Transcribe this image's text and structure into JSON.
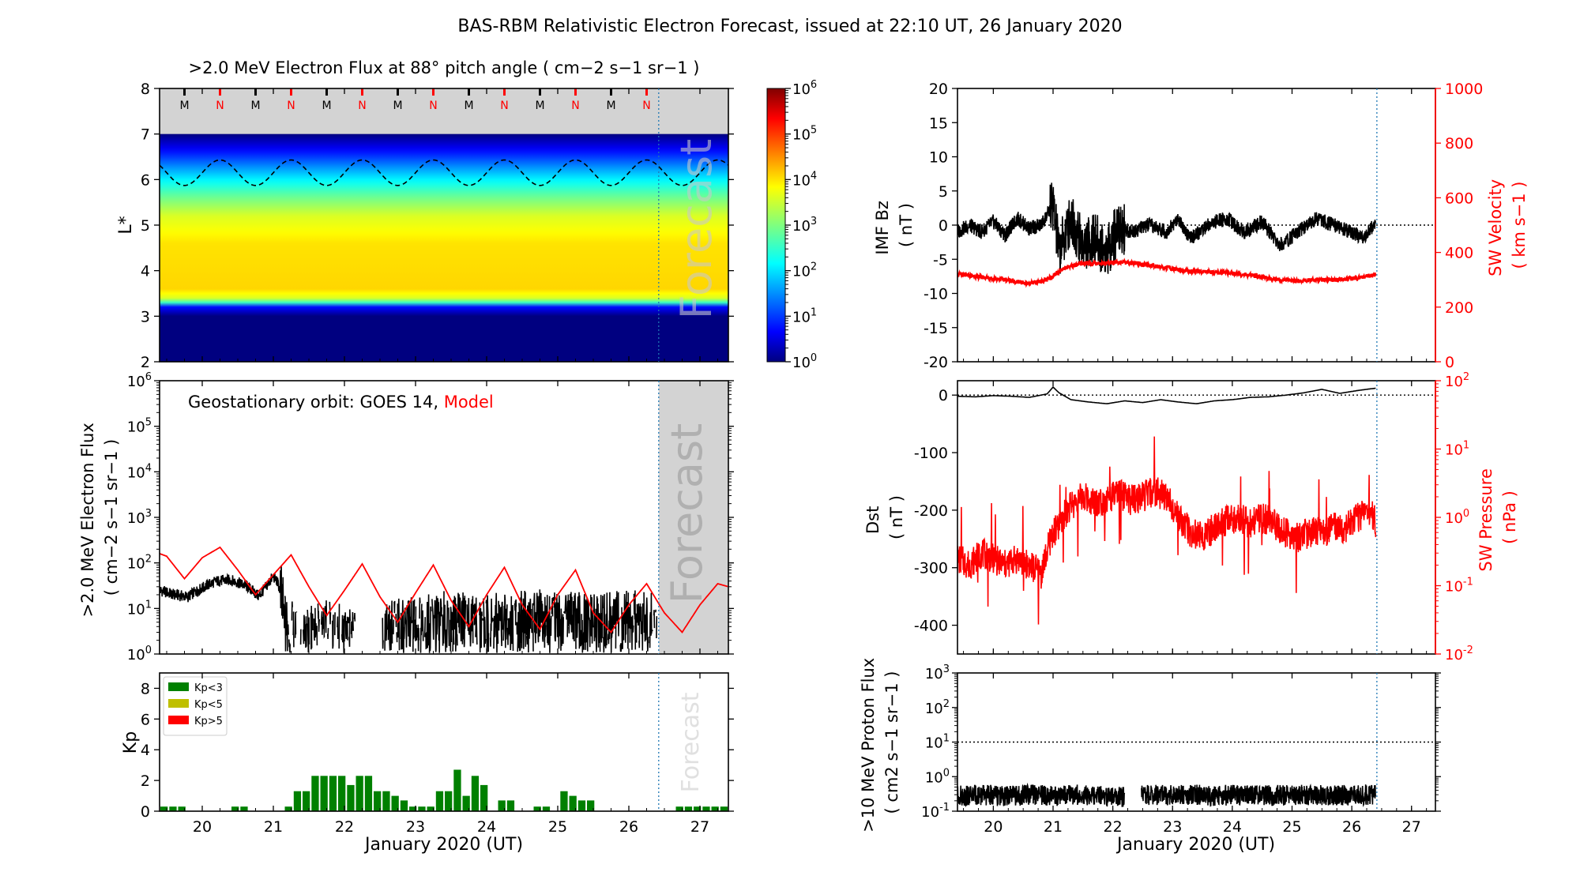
{
  "figure": {
    "title": "BAS-RBM Relativistic Electron Forecast, issued at 22:10 UT, 26 January 2020",
    "forecast_label": "Forecast",
    "month_label": "January 2020 (UT)",
    "x_range": [
      19.4,
      27.4
    ],
    "forecast_start": 26.42,
    "x_ticks": [
      20,
      21,
      22,
      23,
      24,
      25,
      26,
      27
    ],
    "colors": {
      "obs": "#000000",
      "model": "#ff0000",
      "forecast_line": "#1f77b4",
      "forecast_fill": "#d3d3d3"
    }
  },
  "chart_data": [
    {
      "id": "flux_map",
      "type": "heatmap",
      "title": ">2.0 MeV Electron Flux at 88° pitch angle ( cm−2 s−1 sr−1 )",
      "ylabel": "L*",
      "ylim": [
        2,
        8
      ],
      "yticks": [
        2,
        3,
        4,
        5,
        6,
        7,
        8
      ],
      "colorbar": {
        "scale": "log",
        "range": [
          1,
          1000000
        ],
        "ticks": [
          "10^0",
          "10^1",
          "10^2",
          "10^3",
          "10^4",
          "10^5",
          "10^6"
        ]
      },
      "flux_profile": [
        [
          2.0,
          1
        ],
        [
          3.0,
          1
        ],
        [
          3.2,
          5
        ],
        [
          3.35,
          3000
        ],
        [
          3.6,
          12000
        ],
        [
          4.6,
          10000
        ],
        [
          5.2,
          4000
        ],
        [
          5.6,
          800
        ],
        [
          6.1,
          80
        ],
        [
          6.6,
          6
        ],
        [
          7.0,
          1
        ]
      ],
      "magnetopause_band": [
        7.0,
        8.0
      ],
      "geo_orbit_line": {
        "mean_L": 6.15,
        "amplitude": 0.28,
        "period_days": 1.0
      },
      "local_time_markers": [
        "M",
        "N",
        "M",
        "N",
        "M",
        "N",
        "M",
        "N",
        "M",
        "N",
        "M",
        "N",
        "M",
        "N"
      ],
      "marker_times": [
        19.75,
        20.25,
        20.75,
        21.25,
        21.75,
        22.25,
        22.75,
        23.25,
        23.75,
        24.25,
        24.75,
        25.25,
        25.75,
        26.25
      ]
    },
    {
      "id": "geo_flux",
      "type": "line",
      "annotation_prefix": "Geostationary orbit:   GOES 14,",
      "annotation_model": "Model",
      "ylabel": [
        ">2.0 MeV Electron Flux",
        "( cm−2 s−1 sr−1 )"
      ],
      "yscale": "log",
      "ylim": [
        1,
        1000000
      ],
      "yticks": [
        "10^0",
        "10^1",
        "10^2",
        "10^3",
        "10^4",
        "10^5",
        "10^6"
      ],
      "series": [
        {
          "name": "GOES 14",
          "x": [
            19.4,
            19.6,
            19.8,
            20.0,
            20.2,
            20.4,
            20.6,
            20.8,
            20.9,
            21.0,
            21.05,
            21.15,
            21.3,
            21.5,
            21.7,
            22.0,
            22.2,
            22.5,
            23.0,
            23.5,
            24.0,
            24.5,
            25.0,
            25.5,
            26.0,
            26.4
          ],
          "y": [
            25,
            20,
            18,
            28,
            40,
            42,
            32,
            18,
            30,
            50,
            40,
            5,
            2,
            2,
            3,
            2.5,
            2,
            2.5,
            4,
            5,
            4,
            5,
            5,
            4,
            5,
            4
          ]
        },
        {
          "name": "Model",
          "x": [
            19.4,
            19.5,
            19.75,
            20.0,
            20.25,
            20.5,
            20.75,
            21.0,
            21.25,
            21.5,
            21.75,
            22.0,
            22.25,
            22.5,
            22.75,
            23.0,
            23.25,
            23.5,
            23.75,
            24.0,
            24.25,
            24.5,
            24.75,
            25.0,
            25.25,
            25.5,
            25.75,
            26.0,
            26.25,
            26.5,
            26.75,
            27.0,
            27.25,
            27.4
          ],
          "y": [
            160,
            140,
            45,
            130,
            220,
            70,
            20,
            55,
            150,
            30,
            7,
            25,
            95,
            18,
            5,
            22,
            90,
            15,
            4,
            20,
            80,
            12,
            3.5,
            20,
            70,
            8,
            3,
            12,
            35,
            8,
            3,
            12,
            35,
            30
          ]
        }
      ]
    },
    {
      "id": "kp",
      "type": "bar",
      "ylabel": "Kp",
      "ylim": [
        0,
        9
      ],
      "yticks": [
        0,
        2,
        4,
        6,
        8
      ],
      "legend": [
        {
          "label": "Kp<3",
          "color": "#008000"
        },
        {
          "label": "Kp<5",
          "color": "#bfbf00"
        },
        {
          "label": "Kp>5",
          "color": "#ff0000"
        }
      ],
      "bar_width_days": 0.125,
      "start": 19.4,
      "values": [
        0.3,
        0.3,
        0.3,
        0,
        0,
        0,
        0,
        0,
        0.3,
        0.3,
        0,
        0,
        0,
        0,
        0.3,
        1.3,
        1.3,
        2.3,
        2.3,
        2.3,
        2.3,
        1.7,
        2.3,
        2.3,
        1.3,
        1.3,
        1.0,
        0.7,
        0.3,
        0.3,
        0.3,
        1.3,
        1.3,
        2.7,
        1.0,
        2.3,
        1.7,
        0,
        0.7,
        0.7,
        0,
        0,
        0.3,
        0.3,
        0,
        1.3,
        1.0,
        0.7,
        0.7,
        0,
        0,
        0,
        0,
        0,
        0,
        0,
        0,
        0,
        0.3,
        0.3,
        0.3,
        0.3,
        0.3,
        0.3,
        0.3,
        0.3,
        2.3,
        0.3,
        0.3,
        0,
        0,
        0,
        0,
        0.3,
        0.3,
        0.3,
        0,
        0,
        1.3,
        0.7,
        0.3,
        0.7,
        0.3,
        0.3,
        0.7,
        0.3,
        0.7,
        0.3,
        1.0,
        1.0,
        1.0,
        1.0,
        1.0,
        1.0,
        1.0,
        1.0,
        1.0,
        1.0,
        1.0,
        1.0,
        1.0,
        1.0,
        1.0,
        1.0,
        1.0,
        1.0
      ]
    },
    {
      "id": "imf_bz",
      "type": "line",
      "ylabel_left": [
        "IMF Bz",
        "( nT )"
      ],
      "ylabel_right": [
        "SW Velocity",
        "( km s−1 )"
      ],
      "ylim_left": [
        -20,
        20
      ],
      "yticks_left": [
        -20,
        -15,
        -10,
        -5,
        0,
        5,
        10,
        15,
        20
      ],
      "ylim_right": [
        0,
        1000
      ],
      "yticks_right": [
        0,
        200,
        400,
        600,
        800,
        1000
      ],
      "series": [
        {
          "name": "IMF Bz",
          "x": [
            19.4,
            19.6,
            19.8,
            20.0,
            20.2,
            20.4,
            20.6,
            20.8,
            21.0,
            21.1,
            21.3,
            21.5,
            21.7,
            21.9,
            22.1,
            22.3,
            22.6,
            22.9,
            23.1,
            23.3,
            23.6,
            23.9,
            24.2,
            24.5,
            24.8,
            25.1,
            25.4,
            25.7,
            26.0,
            26.2,
            26.4
          ],
          "y": [
            -1,
            0,
            -1,
            0.5,
            -1.5,
            1,
            -0.5,
            0,
            3,
            -4,
            1,
            -3,
            -2,
            -4,
            0,
            -1,
            0,
            -1,
            1,
            -2,
            0,
            1,
            -1,
            0.5,
            -3,
            -1,
            1,
            0,
            -1,
            -2,
            0.5
          ]
        },
        {
          "name": "SW Velocity",
          "x": [
            19.4,
            19.8,
            20.2,
            20.6,
            20.9,
            21.2,
            21.5,
            21.8,
            22.1,
            22.4,
            22.7,
            23.0,
            23.3,
            23.6,
            23.9,
            24.2,
            24.5,
            24.8,
            25.1,
            25.4,
            25.7,
            26.0,
            26.2,
            26.4
          ],
          "y": [
            320,
            310,
            300,
            285,
            300,
            345,
            360,
            360,
            365,
            360,
            350,
            340,
            330,
            330,
            325,
            320,
            310,
            300,
            295,
            300,
            300,
            305,
            310,
            320
          ]
        }
      ]
    },
    {
      "id": "dst",
      "type": "line",
      "ylabel_left": [
        "Dst",
        "( nT )"
      ],
      "ylabel_right": [
        "SW Pressure",
        "( nPa )"
      ],
      "ylim_left": [
        -450,
        25
      ],
      "yticks_left": [
        -400,
        -300,
        -200,
        -100,
        0
      ],
      "yscale_right": "log",
      "ylim_right": [
        0.01,
        100
      ],
      "yticks_right": [
        "10^-2",
        "10^-1",
        "10^0",
        "10^1",
        "10^2"
      ],
      "series": [
        {
          "name": "Dst",
          "x": [
            19.4,
            19.7,
            20.0,
            20.3,
            20.6,
            20.9,
            21.0,
            21.1,
            21.3,
            21.6,
            21.9,
            22.2,
            22.5,
            22.8,
            23.1,
            23.4,
            23.7,
            24.0,
            24.3,
            24.6,
            24.9,
            25.2,
            25.5,
            25.8,
            26.1,
            26.4
          ],
          "y": [
            -2,
            -3,
            -1,
            -2,
            -4,
            2,
            14,
            4,
            -8,
            -12,
            -15,
            -10,
            -13,
            -8,
            -12,
            -15,
            -10,
            -8,
            -4,
            -3,
            0,
            4,
            10,
            3,
            8,
            12
          ]
        },
        {
          "name": "SW Pressure",
          "x": [
            19.4,
            19.6,
            19.8,
            20.0,
            20.2,
            20.4,
            20.6,
            20.8,
            20.9,
            21.0,
            21.1,
            21.3,
            21.5,
            21.7,
            21.9,
            22.1,
            22.3,
            22.5,
            22.7,
            22.9,
            23.1,
            23.3,
            23.5,
            23.7,
            23.9,
            24.1,
            24.3,
            24.5,
            24.7,
            24.9,
            25.1,
            25.3,
            25.5,
            25.7,
            25.9,
            26.1,
            26.3,
            26.4
          ],
          "y": [
            0.25,
            0.2,
            0.3,
            0.25,
            0.2,
            0.25,
            0.2,
            0.15,
            0.3,
            0.6,
            0.7,
            1.5,
            2,
            1.7,
            1.8,
            2.2,
            1.8,
            2,
            2.4,
            2.0,
            1.0,
            0.6,
            0.5,
            0.7,
            0.9,
            1.0,
            0.8,
            1.0,
            0.8,
            0.6,
            0.5,
            0.6,
            0.6,
            0.7,
            0.7,
            1.0,
            1.3,
            0.8
          ]
        }
      ]
    },
    {
      "id": "proton_flux",
      "type": "line",
      "ylabel": [
        ">10 MeV Proton Flux",
        "( cm2 s−1 sr−1 )"
      ],
      "yscale": "log",
      "ylim": [
        0.1,
        1000
      ],
      "yticks": [
        "10^-1",
        "10^0",
        "10^1",
        "10^2",
        "10^3"
      ],
      "threshold": 10,
      "series": [
        {
          "name": ">10 MeV Proton Flux",
          "x": [
            19.4,
            19.8,
            20.2,
            20.6,
            21.0,
            21.4,
            21.8,
            22.2,
            22.5,
            22.9,
            23.3,
            23.7,
            24.1,
            24.5,
            24.9,
            25.3,
            25.7,
            26.1,
            26.4
          ],
          "y": [
            0.28,
            0.3,
            0.27,
            0.3,
            0.28,
            0.3,
            0.27,
            0.26,
            0.3,
            0.29,
            0.3,
            0.28,
            0.3,
            0.28,
            0.29,
            0.3,
            0.28,
            0.3,
            0.3
          ]
        }
      ]
    }
  ]
}
